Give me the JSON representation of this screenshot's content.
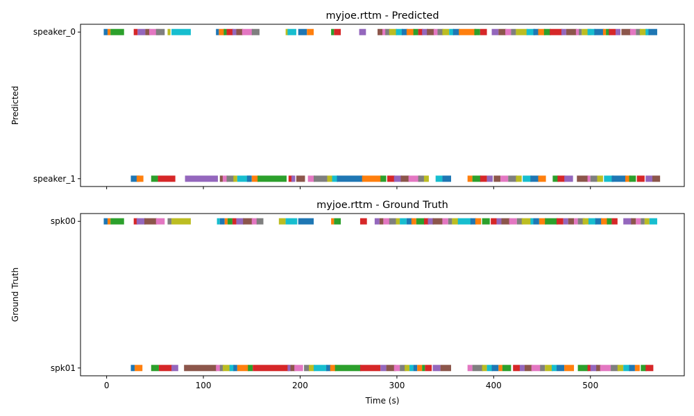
{
  "chart_data": [
    {
      "type": "broken_barh",
      "title": "myjoe.rttm - Predicted",
      "ylabel": "Predicted",
      "xlabel": "",
      "xlim": [
        -27,
        597
      ],
      "xticks": [
        0,
        100,
        200,
        300,
        400,
        500
      ],
      "show_xtick_labels": false,
      "grid": false,
      "tracks": [
        {
          "name": "speaker_1",
          "segments": [
            [
              25,
              9
            ],
            [
              31,
              7
            ],
            [
              46,
              7
            ],
            [
              53,
              18
            ],
            [
              81,
              34
            ],
            [
              117,
              3
            ],
            [
              120,
              5
            ],
            [
              124,
              8
            ],
            [
              131,
              4
            ],
            [
              135,
              14
            ],
            [
              145,
              5
            ],
            [
              150,
              7
            ],
            [
              156,
              30
            ],
            [
              188,
              5
            ],
            [
              191,
              4
            ],
            [
              196,
              9
            ],
            [
              208,
              7
            ],
            [
              214,
              14
            ],
            [
              228,
              5
            ],
            [
              233,
              6
            ],
            [
              238,
              27
            ],
            [
              264,
              20
            ],
            [
              283,
              6
            ],
            [
              290,
              8
            ],
            [
              297,
              8
            ],
            [
              304,
              9
            ],
            [
              312,
              12
            ],
            [
              322,
              6
            ],
            [
              328,
              5
            ],
            [
              340,
              7
            ],
            [
              347,
              9
            ],
            [
              373,
              5
            ],
            [
              378,
              9
            ],
            [
              386,
              7
            ],
            [
              393,
              6
            ],
            [
              400,
              7
            ],
            [
              407,
              8
            ],
            [
              415,
              9
            ],
            [
              423,
              6
            ],
            [
              430,
              9
            ],
            [
              438,
              9
            ],
            [
              446,
              8
            ],
            [
              461,
              6
            ],
            [
              466,
              8
            ],
            [
              473,
              9
            ],
            [
              486,
              12
            ],
            [
              497,
              3
            ],
            [
              500,
              7
            ],
            [
              507,
              6
            ],
            [
              514,
              10
            ],
            [
              522,
              15
            ],
            [
              536,
              6
            ],
            [
              540,
              7
            ],
            [
              548,
              8
            ],
            [
              557,
              7
            ],
            [
              564,
              8
            ]
          ]
        },
        {
          "name": "speaker_0",
          "segments": [
            [
              -3,
              4
            ],
            [
              1,
              3
            ],
            [
              4,
              14
            ],
            [
              28,
              4
            ],
            [
              32,
              8
            ],
            [
              40,
              5
            ],
            [
              44,
              11
            ],
            [
              51,
              9
            ],
            [
              63,
              3
            ],
            [
              67,
              20
            ],
            [
              113,
              3
            ],
            [
              116,
              6
            ],
            [
              121,
              3
            ],
            [
              124,
              7
            ],
            [
              130,
              4
            ],
            [
              134,
              7
            ],
            [
              140,
              11
            ],
            [
              150,
              8
            ],
            [
              185,
              3
            ],
            [
              187,
              9
            ],
            [
              198,
              9
            ],
            [
              207,
              7
            ],
            [
              232,
              3
            ],
            [
              235,
              7
            ],
            [
              261,
              7
            ],
            [
              280,
              5
            ],
            [
              285,
              4
            ],
            [
              288,
              5
            ],
            [
              292,
              8
            ],
            [
              299,
              7
            ],
            [
              305,
              6
            ],
            [
              310,
              8
            ],
            [
              317,
              5
            ],
            [
              322,
              5
            ],
            [
              326,
              6
            ],
            [
              331,
              8
            ],
            [
              338,
              4
            ],
            [
              342,
              6
            ],
            [
              347,
              7
            ],
            [
              354,
              5
            ],
            [
              358,
              7
            ],
            [
              364,
              18
            ],
            [
              380,
              6
            ],
            [
              386,
              7
            ],
            [
              398,
              7
            ],
            [
              405,
              8
            ],
            [
              412,
              6
            ],
            [
              418,
              5
            ],
            [
              423,
              12
            ],
            [
              434,
              9
            ],
            [
              441,
              6
            ],
            [
              446,
              7
            ],
            [
              452,
              7
            ],
            [
              458,
              13
            ],
            [
              470,
              5
            ],
            [
              475,
              11
            ],
            [
              485,
              4
            ],
            [
              488,
              3
            ],
            [
              491,
              10
            ],
            [
              497,
              8
            ],
            [
              504,
              10
            ],
            [
              513,
              3
            ],
            [
              516,
              4
            ],
            [
              519,
              7
            ],
            [
              526,
              5
            ],
            [
              532,
              10
            ],
            [
              541,
              6
            ],
            [
              547,
              5
            ],
            [
              551,
              8
            ],
            [
              557,
              4
            ],
            [
              560,
              9
            ]
          ]
        }
      ]
    },
    {
      "type": "broken_barh",
      "title": "myjoe.rttm - Ground Truth",
      "ylabel": "Ground Truth",
      "xlabel": "Time (s)",
      "xlim": [
        -27,
        597
      ],
      "xticks": [
        0,
        100,
        200,
        300,
        400,
        500
      ],
      "show_xtick_labels": true,
      "grid": false,
      "tracks": [
        {
          "name": "spk01",
          "segments": [
            [
              25,
              4
            ],
            [
              29,
              8
            ],
            [
              46,
              8
            ],
            [
              54,
              14
            ],
            [
              67,
              7
            ],
            [
              80,
              34
            ],
            [
              113,
              5
            ],
            [
              117,
              4
            ],
            [
              120,
              8
            ],
            [
              127,
              5
            ],
            [
              131,
              4
            ],
            [
              135,
              12
            ],
            [
              146,
              5
            ],
            [
              151,
              38
            ],
            [
              187,
              4
            ],
            [
              190,
              5
            ],
            [
              194,
              9
            ],
            [
              204,
              6
            ],
            [
              209,
              6
            ],
            [
              214,
              14
            ],
            [
              227,
              5
            ],
            [
              231,
              6
            ],
            [
              236,
              27
            ],
            [
              262,
              21
            ],
            [
              283,
              6
            ],
            [
              289,
              10
            ],
            [
              297,
              6
            ],
            [
              303,
              6
            ],
            [
              308,
              5
            ],
            [
              313,
              4
            ],
            [
              317,
              4
            ],
            [
              321,
              5
            ],
            [
              326,
              3
            ],
            [
              329,
              7
            ],
            [
              337,
              8
            ],
            [
              345,
              11
            ],
            [
              373,
              5
            ],
            [
              378,
              11
            ],
            [
              388,
              5
            ],
            [
              393,
              6
            ],
            [
              398,
              7
            ],
            [
              405,
              4
            ],
            [
              409,
              9
            ],
            [
              420,
              7
            ],
            [
              427,
              5
            ],
            [
              432,
              8
            ],
            [
              439,
              10
            ],
            [
              448,
              5
            ],
            [
              453,
              8
            ],
            [
              460,
              5
            ],
            [
              465,
              8
            ],
            [
              473,
              10
            ],
            [
              487,
              11
            ],
            [
              497,
              4
            ],
            [
              500,
              7
            ],
            [
              506,
              5
            ],
            [
              510,
              11
            ],
            [
              521,
              8
            ],
            [
              528,
              6
            ],
            [
              534,
              7
            ],
            [
              540,
              6
            ],
            [
              546,
              5
            ],
            [
              552,
              6
            ],
            [
              557,
              8
            ]
          ]
        },
        {
          "name": "spk00",
          "segments": [
            [
              -3,
              4
            ],
            [
              1,
              3
            ],
            [
              4,
              14
            ],
            [
              28,
              4
            ],
            [
              31,
              9
            ],
            [
              39,
              13
            ],
            [
              51,
              9
            ],
            [
              63,
              4
            ],
            [
              67,
              20
            ],
            [
              114,
              3
            ],
            [
              117,
              5
            ],
            [
              122,
              3
            ],
            [
              125,
              5
            ],
            [
              130,
              4
            ],
            [
              134,
              8
            ],
            [
              141,
              10
            ],
            [
              150,
              6
            ],
            [
              155,
              7
            ],
            [
              178,
              7
            ],
            [
              185,
              12
            ],
            [
              198,
              16
            ],
            [
              232,
              3
            ],
            [
              235,
              7
            ],
            [
              262,
              7
            ],
            [
              277,
              5
            ],
            [
              282,
              4
            ],
            [
              286,
              7
            ],
            [
              292,
              7
            ],
            [
              299,
              4
            ],
            [
              303,
              7
            ],
            [
              310,
              6
            ],
            [
              315,
              5
            ],
            [
              320,
              9
            ],
            [
              328,
              5
            ],
            [
              332,
              6
            ],
            [
              337,
              10
            ],
            [
              347,
              6
            ],
            [
              353,
              4
            ],
            [
              357,
              7
            ],
            [
              363,
              14
            ],
            [
              376,
              6
            ],
            [
              381,
              6
            ],
            [
              388,
              8
            ],
            [
              397,
              6
            ],
            [
              403,
              5
            ],
            [
              408,
              9
            ],
            [
              416,
              8
            ],
            [
              424,
              6
            ],
            [
              429,
              10
            ],
            [
              438,
              3
            ],
            [
              441,
              6
            ],
            [
              447,
              7
            ],
            [
              453,
              13
            ],
            [
              465,
              7
            ],
            [
              472,
              5
            ],
            [
              477,
              6
            ],
            [
              483,
              4
            ],
            [
              487,
              7
            ],
            [
              492,
              7
            ],
            [
              498,
              8
            ],
            [
              505,
              7
            ],
            [
              511,
              7
            ],
            [
              517,
              5
            ],
            [
              522,
              6
            ],
            [
              534,
              9
            ],
            [
              542,
              5
            ],
            [
              547,
              5
            ],
            [
              552,
              4
            ],
            [
              556,
              5
            ],
            [
              561,
              8
            ]
          ]
        }
      ]
    }
  ]
}
